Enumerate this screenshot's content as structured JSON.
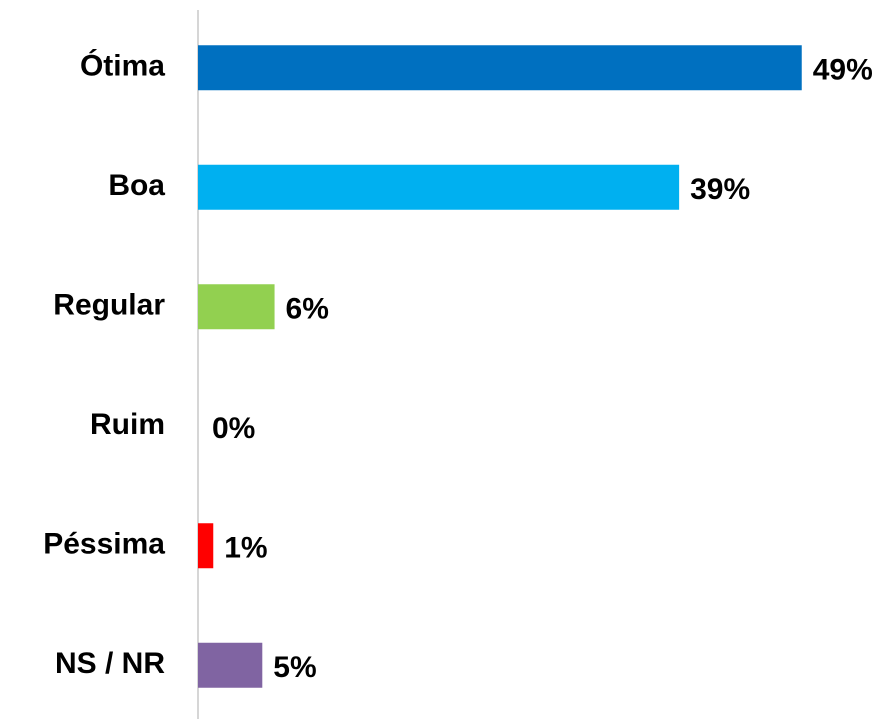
{
  "chart_data": {
    "type": "barh",
    "categories": [
      "Ótima",
      "Boa",
      "Regular",
      "Ruim",
      "Péssima",
      "NS / NR"
    ],
    "values": [
      49,
      39,
      6,
      0,
      1,
      5
    ],
    "value_labels": [
      "49%",
      "39%",
      "6%",
      "0%",
      "1%",
      "5%"
    ],
    "colors": [
      "#0070c0",
      "#00b0f0",
      "#92d050",
      "#ffc000",
      "#ff0000",
      "#8064a2"
    ],
    "xlim": [
      0,
      50
    ]
  }
}
